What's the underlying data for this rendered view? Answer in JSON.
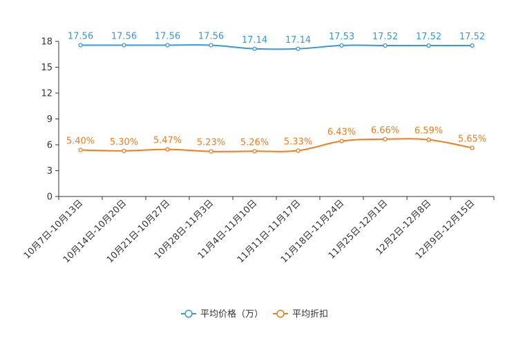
{
  "chart_data": {
    "type": "line",
    "categories": [
      "10月7日-10月13日",
      "10月14日-10月20日",
      "10月21日-10月27日",
      "10月28日-11月3日",
      "11月4日-11月10日",
      "11月11日-11月17日",
      "11月18日-11月24日",
      "11月25日-12月1日",
      "12月2日-12月8日",
      "12月9日-12月15日"
    ],
    "ylim": [
      0,
      18
    ],
    "yticks": [
      0,
      3,
      6,
      9,
      12,
      15,
      18
    ],
    "series": [
      {
        "name": "平均价格（万）",
        "color": "#3498db",
        "values": [
          17.56,
          17.56,
          17.56,
          17.56,
          17.14,
          17.14,
          17.53,
          17.52,
          17.52,
          17.52
        ],
        "labels": [
          "17.56",
          "17.56",
          "17.56",
          "17.56",
          "17.14",
          "17.14",
          "17.53",
          "17.52",
          "17.52",
          "17.52"
        ]
      },
      {
        "name": "平均折扣",
        "color": "#f07c1a",
        "values": [
          5.4,
          5.3,
          5.47,
          5.23,
          5.26,
          5.33,
          6.43,
          6.66,
          6.59,
          5.65
        ],
        "labels": [
          "5.40%",
          "5.30%",
          "5.47%",
          "5.23%",
          "5.26%",
          "5.33%",
          "6.43%",
          "6.66%",
          "6.59%",
          "5.65%"
        ]
      }
    ],
    "legend": "bottom-center"
  }
}
